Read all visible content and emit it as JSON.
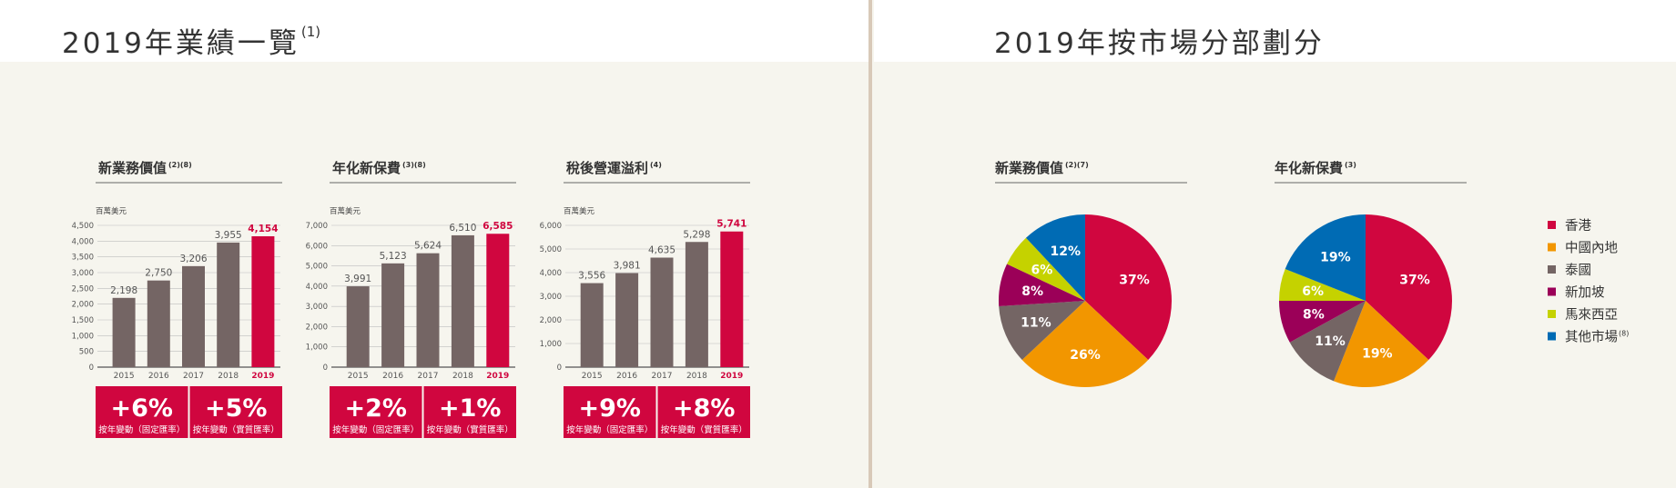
{
  "left": {
    "title": "2019年業績一覽",
    "title_sup": "(1)",
    "y_unit": "百萬美元",
    "pill_caption_1": "按年變動（固定匯率）",
    "pill_caption_2": "按年變動（實質匯率）"
  },
  "right": {
    "title": "2019年按市場分部劃分"
  },
  "colors": {
    "bar": "#746564",
    "highlight": "#d0063f",
    "hong_kong": "#d0063f",
    "mainland": "#f29600",
    "thailand": "#746564",
    "singapore": "#9b0058",
    "malaysia": "#c5d200",
    "other": "#006bb4"
  },
  "chart_data": [
    {
      "type": "bar",
      "title": "新業務價值(2)(8)",
      "ylabel": "百萬美元",
      "categories": [
        "2015",
        "2016",
        "2017",
        "2018",
        "2019"
      ],
      "values": [
        2198,
        2750,
        3206,
        3955,
        4154
      ],
      "value_labels": [
        "2,198",
        "2,750",
        "3,206",
        "3,955",
        "4,154"
      ],
      "yticks": [
        "0",
        "500",
        "1,000",
        "1,500",
        "2,000",
        "2,500",
        "3,000",
        "3,500",
        "4,000",
        "4,500"
      ],
      "ylim": [
        0,
        4500
      ],
      "changes": [
        "+6%",
        "+5%"
      ]
    },
    {
      "type": "bar",
      "title": "年化新保費(3)(8)",
      "ylabel": "百萬美元",
      "categories": [
        "2015",
        "2016",
        "2017",
        "2018",
        "2019"
      ],
      "values": [
        3991,
        5123,
        5624,
        6510,
        6585
      ],
      "value_labels": [
        "3,991",
        "5,123",
        "5,624",
        "6,510",
        "6,585"
      ],
      "yticks": [
        "0",
        "1,000",
        "2,000",
        "3,000",
        "4,000",
        "5,000",
        "6,000",
        "7,000"
      ],
      "ylim": [
        0,
        7000
      ],
      "changes": [
        "+2%",
        "+1%"
      ]
    },
    {
      "type": "bar",
      "title": "稅後營運溢利(4)",
      "ylabel": "百萬美元",
      "categories": [
        "2015",
        "2016",
        "2017",
        "2018",
        "2019"
      ],
      "values": [
        3556,
        3981,
        4635,
        5298,
        5741
      ],
      "value_labels": [
        "3,556",
        "3,981",
        "4,635",
        "5,298",
        "5,741"
      ],
      "yticks": [
        "0",
        "1,000",
        "2,000",
        "3,000",
        "4,000",
        "5,000",
        "6,000"
      ],
      "ylim": [
        0,
        6000
      ],
      "changes": [
        "+9%",
        "+8%"
      ]
    },
    {
      "type": "pie",
      "title": "新業務價值(2)(7)",
      "slices": [
        {
          "key": "hong_kong",
          "value": 37,
          "label": "37%"
        },
        {
          "key": "mainland",
          "value": 26,
          "label": "26%"
        },
        {
          "key": "thailand",
          "value": 11,
          "label": "11%"
        },
        {
          "key": "singapore",
          "value": 8,
          "label": "8%"
        },
        {
          "key": "malaysia",
          "value": 6,
          "label": "6%"
        },
        {
          "key": "other",
          "value": 12,
          "label": "12%"
        }
      ]
    },
    {
      "type": "pie",
      "title": "年化新保費(3)",
      "slices": [
        {
          "key": "hong_kong",
          "value": 37,
          "label": "37%"
        },
        {
          "key": "mainland",
          "value": 19,
          "label": "19%"
        },
        {
          "key": "thailand",
          "value": 11,
          "label": "11%"
        },
        {
          "key": "singapore",
          "value": 8,
          "label": "8%"
        },
        {
          "key": "malaysia",
          "value": 6,
          "label": "6%"
        },
        {
          "key": "other",
          "value": 19,
          "label": "19%"
        }
      ]
    }
  ],
  "legend": [
    {
      "key": "hong_kong",
      "label": "香港",
      "sup": ""
    },
    {
      "key": "mainland",
      "label": "中國內地",
      "sup": ""
    },
    {
      "key": "thailand",
      "label": "泰國",
      "sup": ""
    },
    {
      "key": "singapore",
      "label": "新加坡",
      "sup": ""
    },
    {
      "key": "malaysia",
      "label": "馬來西亞",
      "sup": ""
    },
    {
      "key": "other",
      "label": "其他市場",
      "sup": "(8)"
    }
  ]
}
